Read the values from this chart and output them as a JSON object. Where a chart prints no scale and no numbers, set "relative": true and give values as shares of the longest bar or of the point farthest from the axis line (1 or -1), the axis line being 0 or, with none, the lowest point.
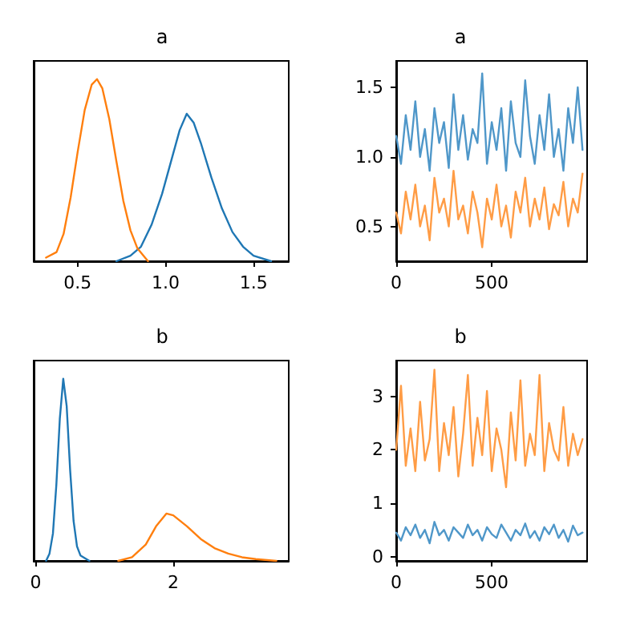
{
  "chart_data": [
    {
      "type": "line",
      "title": "a",
      "relative": true,
      "tick_labels": "x",
      "xlim": [
        0.25,
        1.7
      ],
      "xticks": [
        0.5,
        {
          "value": 1,
          "label": "1.0"
        },
        1.5
      ],
      "grid": false,
      "legend": false,
      "marker": "none",
      "line_style": "solid",
      "series": [
        {
          "color": "#1f77b4",
          "x": [
            0.72,
            0.8,
            0.86,
            0.92,
            0.98,
            1.04,
            1.08,
            1.12,
            1.16,
            1.2,
            1.26,
            1.32,
            1.38,
            1.44,
            1.5,
            1.6
          ],
          "values": [
            0.0,
            0.03,
            0.08,
            0.2,
            0.37,
            0.58,
            0.72,
            0.81,
            0.76,
            0.65,
            0.46,
            0.29,
            0.16,
            0.08,
            0.03,
            0.0
          ]
        },
        {
          "color": "#ff7f0e",
          "x": [
            0.32,
            0.38,
            0.42,
            0.46,
            0.5,
            0.54,
            0.58,
            0.61,
            0.64,
            0.68,
            0.72,
            0.76,
            0.8,
            0.84,
            0.9
          ],
          "values": [
            0.02,
            0.05,
            0.15,
            0.35,
            0.6,
            0.83,
            0.97,
            1.0,
            0.95,
            0.78,
            0.55,
            0.33,
            0.17,
            0.07,
            0.0
          ]
        }
      ]
    },
    {
      "type": "line",
      "title": "a",
      "xlim": [
        0,
        999
      ],
      "xticks": [
        0,
        500
      ],
      "ylim": [
        0.25,
        1.69
      ],
      "yticks": [
        0.5,
        {
          "value": 1,
          "label": "1.0"
        },
        1.5
      ],
      "grid": false,
      "legend": false,
      "marker": "none",
      "line_style": "solid",
      "x": [
        0,
        25,
        50,
        75,
        100,
        125,
        150,
        175,
        200,
        225,
        250,
        275,
        300,
        325,
        350,
        375,
        400,
        425,
        450,
        475,
        500,
        525,
        550,
        575,
        600,
        625,
        650,
        675,
        700,
        725,
        750,
        775,
        800,
        825,
        850,
        875,
        900,
        925,
        950,
        975
      ],
      "series": [
        {
          "color": "#4f97c9",
          "values": [
            1.15,
            0.95,
            1.3,
            1.05,
            1.4,
            1.0,
            1.2,
            0.9,
            1.35,
            1.1,
            1.25,
            0.92,
            1.45,
            1.05,
            1.3,
            0.98,
            1.2,
            1.1,
            1.6,
            0.95,
            1.25,
            1.05,
            1.35,
            0.9,
            1.4,
            1.1,
            1.0,
            1.55,
            1.15,
            0.95,
            1.3,
            1.05,
            1.45,
            1.0,
            1.2,
            0.9,
            1.35,
            1.1,
            1.5,
            1.05
          ]
        },
        {
          "color": "#ff9c45",
          "values": [
            0.6,
            0.45,
            0.75,
            0.55,
            0.8,
            0.5,
            0.65,
            0.4,
            0.85,
            0.6,
            0.7,
            0.5,
            0.9,
            0.55,
            0.65,
            0.45,
            0.75,
            0.6,
            0.35,
            0.7,
            0.55,
            0.8,
            0.5,
            0.65,
            0.42,
            0.75,
            0.6,
            0.85,
            0.5,
            0.7,
            0.55,
            0.78,
            0.48,
            0.66,
            0.58,
            0.82,
            0.5,
            0.7,
            0.6,
            0.88
          ]
        }
      ]
    },
    {
      "type": "line",
      "title": "b",
      "relative": true,
      "tick_labels": "x",
      "xlim": [
        -0.03,
        3.68
      ],
      "xticks": [
        0,
        2
      ],
      "grid": false,
      "legend": false,
      "marker": "none",
      "line_style": "solid",
      "series": [
        {
          "color": "#1f77b4",
          "x": [
            0.15,
            0.2,
            0.25,
            0.3,
            0.35,
            0.4,
            0.45,
            0.5,
            0.55,
            0.6,
            0.65,
            0.78
          ],
          "values": [
            0.0,
            0.04,
            0.15,
            0.42,
            0.78,
            1.0,
            0.85,
            0.5,
            0.22,
            0.08,
            0.03,
            0.0
          ]
        },
        {
          "color": "#ff7f0e",
          "x": [
            1.2,
            1.4,
            1.6,
            1.75,
            1.9,
            2.0,
            2.2,
            2.4,
            2.6,
            2.8,
            3.0,
            3.2,
            3.5
          ],
          "values": [
            0.0,
            0.02,
            0.09,
            0.19,
            0.26,
            0.25,
            0.19,
            0.12,
            0.07,
            0.04,
            0.02,
            0.01,
            0.0
          ]
        }
      ]
    },
    {
      "type": "line",
      "title": "b",
      "xlim": [
        0,
        999
      ],
      "xticks": [
        0,
        500
      ],
      "ylim": [
        -0.08,
        3.67
      ],
      "yticks": [
        0,
        1,
        2,
        3
      ],
      "grid": false,
      "legend": false,
      "marker": "none",
      "line_style": "solid",
      "x": [
        0,
        25,
        50,
        75,
        100,
        125,
        150,
        175,
        200,
        225,
        250,
        275,
        300,
        325,
        350,
        375,
        400,
        425,
        450,
        475,
        500,
        525,
        550,
        575,
        600,
        625,
        650,
        675,
        700,
        725,
        750,
        775,
        800,
        825,
        850,
        875,
        900,
        925,
        950,
        975
      ],
      "series": [
        {
          "color": "#4f97c9",
          "values": [
            0.45,
            0.3,
            0.55,
            0.4,
            0.6,
            0.35,
            0.5,
            0.25,
            0.65,
            0.4,
            0.5,
            0.3,
            0.55,
            0.45,
            0.35,
            0.6,
            0.4,
            0.5,
            0.3,
            0.55,
            0.42,
            0.35,
            0.6,
            0.45,
            0.3,
            0.5,
            0.4,
            0.62,
            0.35,
            0.48,
            0.3,
            0.55,
            0.42,
            0.6,
            0.35,
            0.5,
            0.28,
            0.58,
            0.4,
            0.45
          ]
        },
        {
          "color": "#ff9c45",
          "values": [
            2.0,
            3.2,
            1.7,
            2.4,
            1.6,
            2.9,
            1.8,
            2.2,
            3.5,
            1.6,
            2.5,
            1.9,
            2.8,
            1.5,
            2.3,
            3.4,
            1.7,
            2.6,
            1.9,
            3.1,
            1.6,
            2.4,
            2.0,
            1.3,
            2.7,
            1.8,
            3.3,
            1.7,
            2.3,
            1.9,
            3.4,
            1.6,
            2.5,
            2.0,
            1.8,
            2.8,
            1.7,
            2.3,
            1.9,
            2.2
          ]
        }
      ]
    }
  ]
}
